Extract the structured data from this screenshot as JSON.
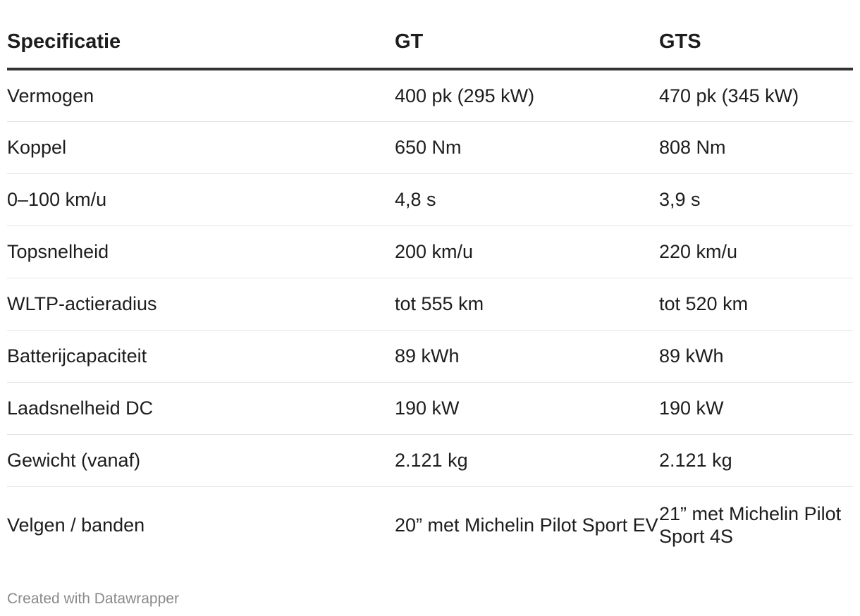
{
  "chart_data": {
    "type": "table",
    "columns": [
      "Specificatie",
      "GT",
      "GTS"
    ],
    "rows": [
      [
        "Vermogen",
        "400 pk (295 kW)",
        "470 pk (345 kW)"
      ],
      [
        "Koppel",
        "650 Nm",
        "808 Nm"
      ],
      [
        "0–100 km/u",
        "4,8 s",
        "3,9 s"
      ],
      [
        "Topsnelheid",
        "200 km/u",
        "220 km/u"
      ],
      [
        "WLTP-actieradius",
        "tot 555 km",
        "tot 520 km"
      ],
      [
        "Batterijcapaciteit",
        "89 kWh",
        "89 kWh"
      ],
      [
        "Laadsnelheid DC",
        "190 kW",
        "190 kW"
      ],
      [
        "Gewicht (vanaf)",
        "2.121 kg",
        "2.121 kg"
      ],
      [
        "Velgen / banden",
        "20” met Michelin Pilot Sport EV",
        "21” met Michelin Pilot Sport 4S"
      ]
    ]
  },
  "footer": {
    "credit": "Created with Datawrapper"
  }
}
